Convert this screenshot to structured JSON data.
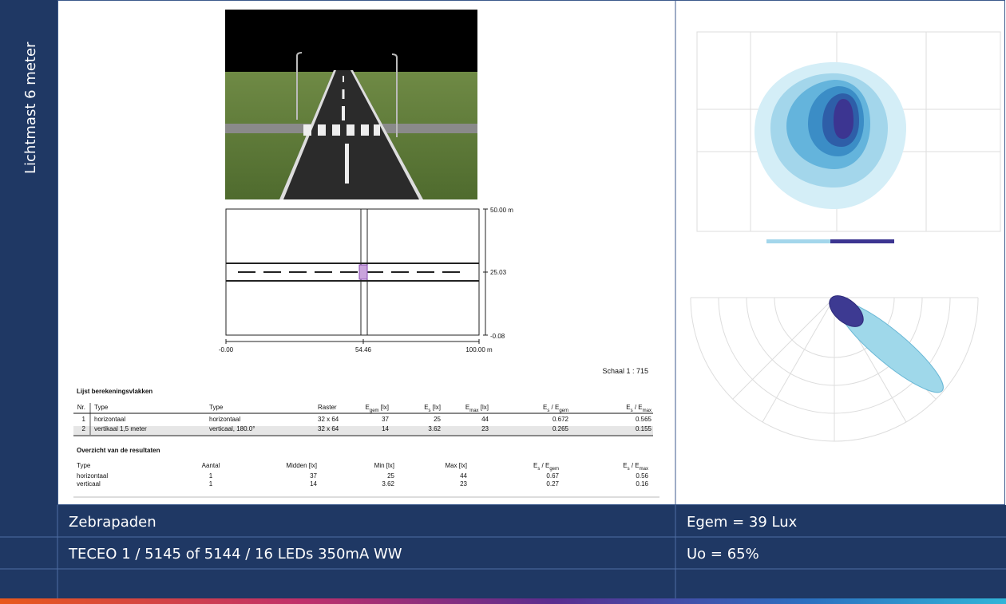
{
  "sidebar": {
    "title": "Lichtmast 6 meter"
  },
  "plan": {
    "y_labels": [
      "50.00 m",
      "25.03",
      "-0.08"
    ],
    "x_labels": [
      "-0.00",
      "54.46",
      "100.00 m"
    ],
    "scale": "Schaal 1 : 715"
  },
  "calc_table": {
    "title": "Lijst berekeningsvlakken",
    "headers": [
      [
        {
          "t": "Nr."
        }
      ],
      [
        {
          "t": "Type"
        }
      ],
      [
        {
          "t": "Type"
        }
      ],
      [
        {
          "t": "Raster"
        }
      ],
      [
        {
          "t": "E"
        },
        {
          "sub": "gem"
        },
        {
          "t": " [lx]"
        }
      ],
      [
        {
          "t": "E"
        },
        {
          "sub": "s"
        },
        {
          "t": " [lx]"
        }
      ],
      [
        {
          "t": "E"
        },
        {
          "sub": "max"
        },
        {
          "t": " [lx]"
        }
      ],
      [
        {
          "t": "E"
        },
        {
          "sub": "s"
        },
        {
          "t": " / E"
        },
        {
          "sub": "gem"
        }
      ],
      [
        {
          "t": "E"
        },
        {
          "sub": "s"
        },
        {
          "t": " / E"
        },
        {
          "sub": "max"
        }
      ]
    ],
    "rows": [
      [
        "1",
        "horizontaal",
        "horizontaal",
        "32 x 64",
        "37",
        "25",
        "44",
        "0.672",
        "0.565"
      ],
      [
        "2",
        "vertikaal 1,5 meter",
        "verticaal, 180.0°",
        "32 x 64",
        "14",
        "3.62",
        "23",
        "0.265",
        "0.155"
      ]
    ]
  },
  "results_table": {
    "title": "Overzicht van de resultaten",
    "headers": [
      [
        {
          "t": "Type"
        }
      ],
      [
        {
          "t": "Aantal"
        }
      ],
      [
        {
          "t": "Midden [lx]"
        }
      ],
      [
        {
          "t": "Min [lx]"
        }
      ],
      [
        {
          "t": "Max [lx]"
        }
      ],
      [
        {
          "t": "E"
        },
        {
          "sub": "s"
        },
        {
          "t": " / E"
        },
        {
          "sub": "gem"
        }
      ],
      [
        {
          "t": "E"
        },
        {
          "sub": "s"
        },
        {
          "t": " / E"
        },
        {
          "sub": "max"
        }
      ]
    ],
    "rows": [
      [
        "horizontaal",
        "1",
        "37",
        "25",
        "44",
        "0.67",
        "0.56"
      ],
      [
        "verticaal",
        "1",
        "14",
        "3.62",
        "23",
        "0.27",
        "0.16"
      ]
    ]
  },
  "footer": {
    "rows": [
      [
        "Zebrapaden",
        "Egem = 39 Lux"
      ],
      [
        "TECEO 1 / 5145 of  5144 / 16 LEDs 350mA WW",
        "Uo = 65%"
      ]
    ]
  }
}
